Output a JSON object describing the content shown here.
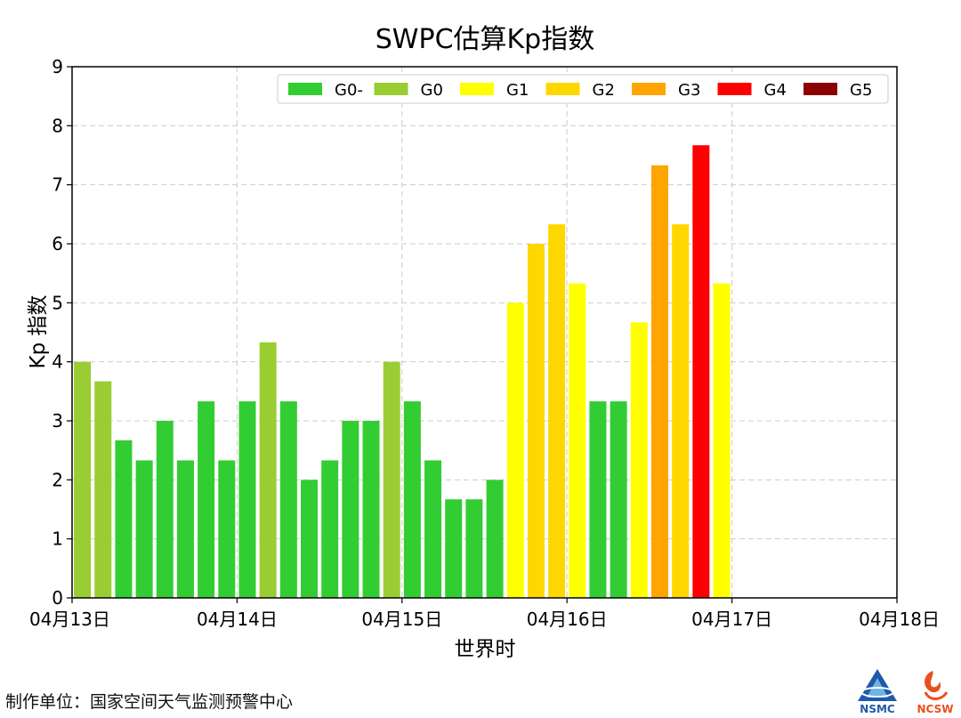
{
  "chart_data": {
    "type": "bar",
    "title": "SWPC估算Kp指数",
    "xlabel": "世界时",
    "ylabel": "Kp 指数",
    "ylim": [
      0,
      9
    ],
    "yticks": [
      "0",
      "1",
      "2",
      "3",
      "4",
      "5",
      "6",
      "7",
      "8",
      "9"
    ],
    "xticks": [
      "04月13日",
      "04月14日",
      "04月15日",
      "04月16日",
      "04月17日",
      "04月18日"
    ],
    "x_unit": "3-hour intervals from 04月13日 00:00 UT",
    "grid": true,
    "legend_position": "top-right",
    "legend": [
      {
        "name": "G0-",
        "color": "#32cd32"
      },
      {
        "name": "G0",
        "color": "#9acd32"
      },
      {
        "name": "G1",
        "color": "#ffff00"
      },
      {
        "name": "G2",
        "color": "#ffd700"
      },
      {
        "name": "G3",
        "color": "#ffa500"
      },
      {
        "name": "G4",
        "color": "#ff0000"
      },
      {
        "name": "G5",
        "color": "#8b0000"
      }
    ],
    "values": [
      4.0,
      3.67,
      2.67,
      2.33,
      3.0,
      2.33,
      3.33,
      2.33,
      3.33,
      4.33,
      3.33,
      2.0,
      2.33,
      3.0,
      3.0,
      4.0,
      3.33,
      2.33,
      1.67,
      1.67,
      2.0,
      5.0,
      6.0,
      6.33,
      5.33,
      3.33,
      3.33,
      4.67,
      7.33,
      6.33,
      7.67,
      5.33
    ],
    "levels": [
      "G0",
      "G0",
      "G0-",
      "G0-",
      "G0-",
      "G0-",
      "G0-",
      "G0-",
      "G0-",
      "G0",
      "G0-",
      "G0-",
      "G0-",
      "G0-",
      "G0-",
      "G0",
      "G0-",
      "G0-",
      "G0-",
      "G0-",
      "G0-",
      "G1",
      "G2",
      "G2",
      "G1",
      "G0-",
      "G0-",
      "G1",
      "G3",
      "G2",
      "G4",
      "G1"
    ]
  },
  "footer": {
    "credit": "制作单位：国家空间天气监测预警中心",
    "logo_left_text": "NSMC",
    "logo_right_text": "NCSW"
  }
}
